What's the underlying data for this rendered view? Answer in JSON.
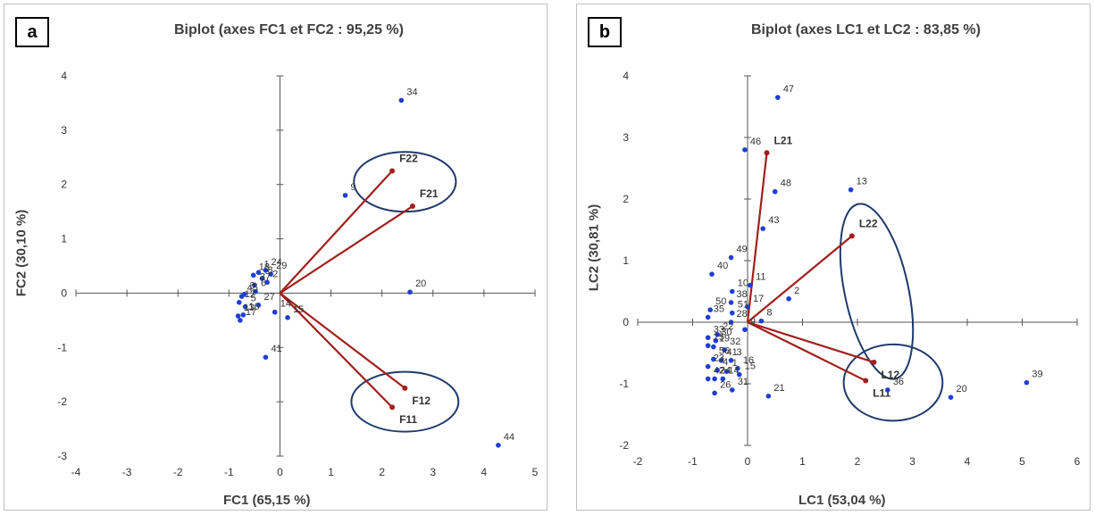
{
  "chart_data": [
    {
      "type": "scatter",
      "panel_label": "a",
      "title": "Biplot (axes FC1 et FC2 : 95,25 %)",
      "xlabel": "FC1 (65,15 %)",
      "ylabel": "FC2 (30,10 %)",
      "xlim": [
        -4,
        5
      ],
      "ylim": [
        -3,
        4
      ],
      "xticks": [
        "-4",
        "-3",
        "-2",
        "-1",
        "0",
        "1",
        "2",
        "3",
        "4",
        "5"
      ],
      "yticks": [
        "-3",
        "-2",
        "-1",
        "0",
        "1",
        "2",
        "3",
        "4"
      ],
      "grid": false,
      "colors": {
        "points": "#1f3fd6",
        "vectors": "#a0201c",
        "ellipses": "#1f3a6b"
      },
      "points": [
        {
          "label": "34",
          "x": 2.38,
          "y": 3.55
        },
        {
          "label": "9",
          "x": 1.28,
          "y": 1.8
        },
        {
          "label": "20",
          "x": 2.55,
          "y": 0.02
        },
        {
          "label": "44",
          "x": 4.28,
          "y": -2.8
        },
        {
          "label": "41",
          "x": -0.28,
          "y": -1.18
        },
        {
          "label": "15",
          "x": 0.15,
          "y": -0.45
        },
        {
          "label": "14",
          "x": -0.1,
          "y": -0.35
        },
        {
          "label": "24",
          "x": -0.28,
          "y": 0.42
        },
        {
          "label": "1",
          "x": -0.42,
          "y": 0.38
        },
        {
          "label": "29",
          "x": -0.18,
          "y": 0.35
        },
        {
          "label": "18",
          "x": -0.52,
          "y": 0.33
        },
        {
          "label": "8",
          "x": -0.35,
          "y": 0.27
        },
        {
          "label": "2",
          "x": -0.25,
          "y": 0.2
        },
        {
          "label": "37",
          "x": -0.5,
          "y": 0.15
        },
        {
          "label": "6",
          "x": -0.48,
          "y": 0.03
        },
        {
          "label": "3",
          "x": -0.7,
          "y": -0.02
        },
        {
          "label": "45",
          "x": -0.75,
          "y": -0.06
        },
        {
          "label": "12",
          "x": -0.8,
          "y": -0.17
        },
        {
          "label": "27",
          "x": -0.42,
          "y": -0.22
        },
        {
          "label": "5",
          "x": -0.68,
          "y": -0.25
        },
        {
          "label": "13",
          "x": -0.82,
          "y": -0.42
        },
        {
          "label": "16",
          "x": -0.72,
          "y": -0.4
        },
        {
          "label": "17",
          "x": -0.78,
          "y": -0.5
        }
      ],
      "vectors": [
        {
          "label": "F22",
          "x": 2.2,
          "y": 2.25
        },
        {
          "label": "F21",
          "x": 2.6,
          "y": 1.6
        },
        {
          "label": "F12",
          "x": 2.45,
          "y": -1.75
        },
        {
          "label": "F11",
          "x": 2.2,
          "y": -2.1
        }
      ],
      "ellipses": [
        {
          "cx": 2.45,
          "cy": 2.05,
          "rx": 1.0,
          "ry": 0.55
        },
        {
          "cx": 2.45,
          "cy": -2.0,
          "rx": 1.05,
          "ry": 0.55
        }
      ]
    },
    {
      "type": "scatter",
      "panel_label": "b",
      "title": "Biplot (axes LC1 et LC2 : 83,85 %)",
      "xlabel": "LC1 (53,04 %)",
      "ylabel": "LC2 (30,81 %)",
      "xlim": [
        -2,
        6
      ],
      "ylim": [
        -2,
        4
      ],
      "xticks": [
        "-2",
        "-1",
        "0",
        "1",
        "2",
        "3",
        "4",
        "5",
        "6"
      ],
      "yticks": [
        "-2",
        "-1",
        "0",
        "1",
        "2",
        "3",
        "4"
      ],
      "grid": false,
      "colors": {
        "points": "#1f3fd6",
        "vectors": "#a0201c",
        "ellipses": "#1f3a6b"
      },
      "points": [
        {
          "label": "47",
          "x": 0.55,
          "y": 3.65
        },
        {
          "label": "46",
          "x": -0.05,
          "y": 2.8
        },
        {
          "label": "48",
          "x": 0.5,
          "y": 2.12
        },
        {
          "label": "13",
          "x": 1.88,
          "y": 2.15
        },
        {
          "label": "43",
          "x": 0.28,
          "y": 1.52
        },
        {
          "label": "49",
          "x": -0.3,
          "y": 1.05
        },
        {
          "label": "40",
          "x": -0.65,
          "y": 0.78
        },
        {
          "label": "11",
          "x": 0.05,
          "y": 0.6
        },
        {
          "label": "2",
          "x": 0.75,
          "y": 0.38
        },
        {
          "label": "10",
          "x": -0.28,
          "y": 0.5
        },
        {
          "label": "38",
          "x": -0.3,
          "y": 0.32
        },
        {
          "label": "17",
          "x": 0.0,
          "y": 0.25
        },
        {
          "label": "51",
          "x": -0.28,
          "y": 0.15
        },
        {
          "label": "50",
          "x": -0.68,
          "y": 0.2
        },
        {
          "label": "8",
          "x": 0.25,
          "y": 0.02
        },
        {
          "label": "35",
          "x": -0.72,
          "y": 0.08
        },
        {
          "label": "28",
          "x": -0.3,
          "y": 0.0
        },
        {
          "label": "22",
          "x": -0.55,
          "y": -0.2
        },
        {
          "label": "33",
          "x": -0.72,
          "y": -0.25
        },
        {
          "label": "30",
          "x": -0.58,
          "y": -0.3
        },
        {
          "label": "9",
          "x": -0.05,
          "y": -0.12
        },
        {
          "label": "25",
          "x": -0.72,
          "y": -0.38
        },
        {
          "label": "19",
          "x": -0.62,
          "y": -0.4
        },
        {
          "label": "32",
          "x": -0.42,
          "y": -0.45
        },
        {
          "label": "56",
          "x": -0.62,
          "y": -0.6
        },
        {
          "label": "41",
          "x": -0.48,
          "y": -0.62
        },
        {
          "label": "3",
          "x": -0.3,
          "y": -0.62
        },
        {
          "label": "23",
          "x": -0.72,
          "y": -0.72
        },
        {
          "label": "16",
          "x": -0.18,
          "y": -0.75
        },
        {
          "label": "4",
          "x": -0.55,
          "y": -0.78
        },
        {
          "label": "1",
          "x": -0.38,
          "y": -0.8
        },
        {
          "label": "42",
          "x": -0.72,
          "y": -0.92
        },
        {
          "label": "24",
          "x": -0.6,
          "y": -0.92
        },
        {
          "label": "14",
          "x": -0.45,
          "y": -0.92
        },
        {
          "label": "15",
          "x": -0.15,
          "y": -0.85
        },
        {
          "label": "26",
          "x": -0.6,
          "y": -1.15
        },
        {
          "label": "31",
          "x": -0.28,
          "y": -1.1
        },
        {
          "label": "21",
          "x": 0.38,
          "y": -1.2
        },
        {
          "label": "36",
          "x": 2.55,
          "y": -1.1
        },
        {
          "label": "20",
          "x": 3.7,
          "y": -1.22
        },
        {
          "label": "39",
          "x": 5.08,
          "y": -0.98
        }
      ],
      "vectors": [
        {
          "label": "L21",
          "x": 0.35,
          "y": 2.75
        },
        {
          "label": "L22",
          "x": 1.9,
          "y": 1.4
        },
        {
          "label": "L12",
          "x": 2.3,
          "y": -0.65
        },
        {
          "label": "L11",
          "x": 2.15,
          "y": -0.95
        }
      ],
      "ellipses": [
        {
          "cx": 2.35,
          "cy": 0.5,
          "rx": 0.58,
          "ry": 1.45,
          "rotate": -12
        },
        {
          "cx": 2.65,
          "cy": -0.98,
          "rx": 0.9,
          "ry": 0.62
        }
      ]
    }
  ]
}
